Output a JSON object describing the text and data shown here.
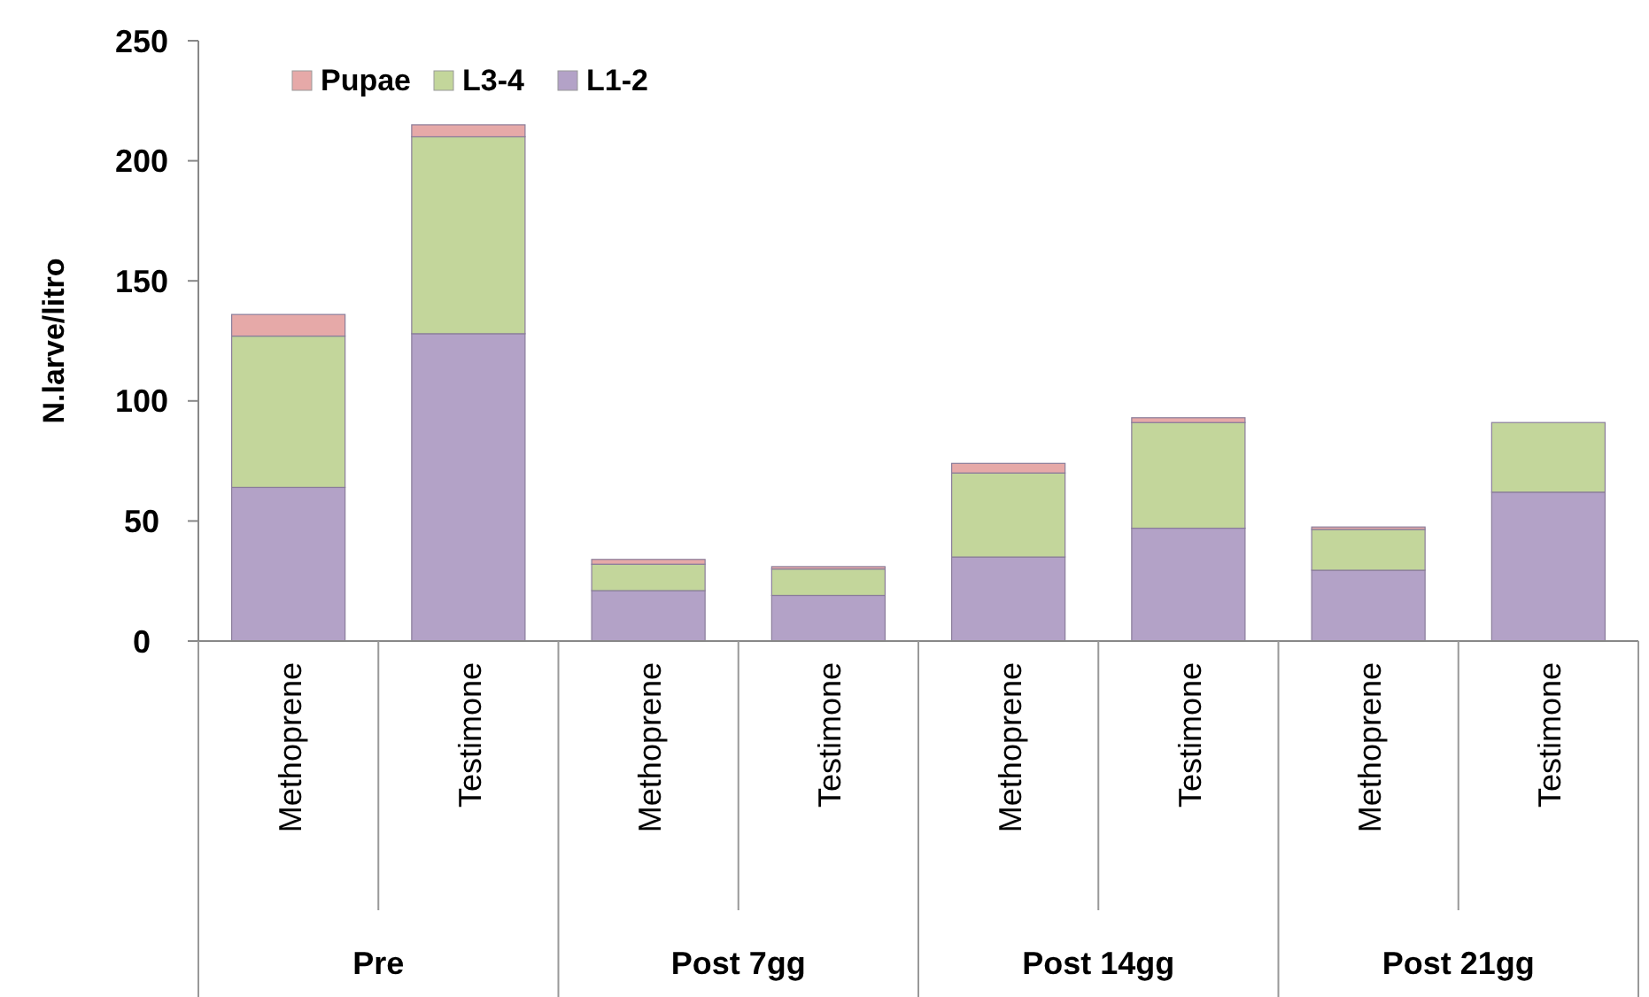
{
  "chart_data": {
    "type": "bar",
    "stacked": true,
    "ylabel": "N.larve/litro",
    "categories": [
      "Methoprene",
      "Testimone",
      "Methoprene",
      "Testimone",
      "Methoprene",
      "Testimone",
      "Methoprene",
      "Testimone"
    ],
    "series": [
      {
        "name": "L1-2",
        "color": "#b3a2c7",
        "values": [
          64,
          128,
          21,
          19,
          35,
          47,
          29.5,
          62
        ]
      },
      {
        "name": "L3-4",
        "color": "#c3d69b",
        "values": [
          63,
          82,
          11,
          11,
          35,
          44,
          17,
          29
        ]
      },
      {
        "name": "Pupae",
        "color": "#e6a9a8",
        "values": [
          9,
          5,
          2,
          1,
          4,
          2,
          1,
          0
        ]
      }
    ],
    "annotations": [
      "Pre",
      "Post 7gg",
      "Post 14gg",
      "Post 21gg"
    ],
    "ylim": [
      0,
      250
    ],
    "yticks": [
      0,
      50,
      100,
      150,
      200,
      250
    ],
    "legend": "top left"
  }
}
